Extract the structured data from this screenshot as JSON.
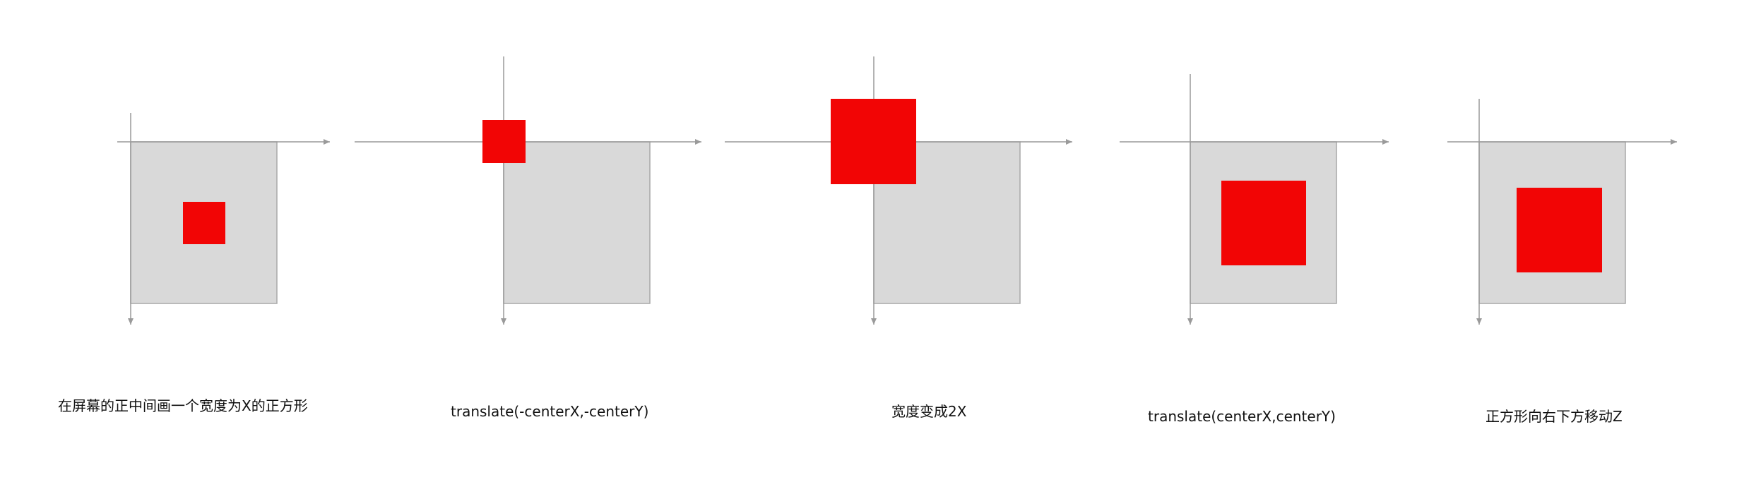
{
  "colors": {
    "axis": "#9a9a9a",
    "screen_fill": "#d9d9d9",
    "screen_stroke": "#a8a8a8",
    "square": "#f20505",
    "text": "#111111"
  },
  "panels": [
    {
      "caption": "在屏幕的正中间画一个宽度为X的正方形"
    },
    {
      "caption": "translate(-centerX,-centerY)"
    },
    {
      "caption": "宽度变成2X"
    },
    {
      "caption": "translate(centerX,centerY)"
    },
    {
      "caption": "正方形向右下方移动Z"
    }
  ]
}
